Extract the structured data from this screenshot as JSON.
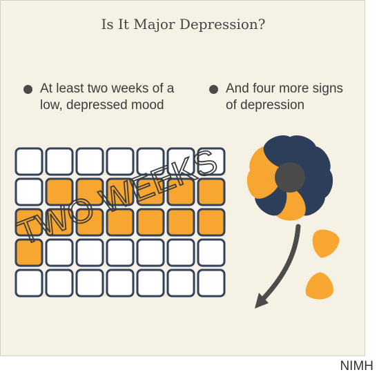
{
  "title": "Is It Major Depression?",
  "bullets": [
    {
      "line1": "At least two weeks of a",
      "line2": "low, depressed mood"
    },
    {
      "line1": "And four more signs",
      "line2": "of depression"
    }
  ],
  "calendar": {
    "label": "TWO WEEKS",
    "rows": 5,
    "cols": 7,
    "highlighted_days": 14,
    "highlight_color": "#f7a731",
    "cell_border_color": "#33415a"
  },
  "flower": {
    "petal_colors": [
      "#2d3e5a",
      "#f7a731"
    ],
    "center_color": "#4b4b4b",
    "stem_color": "#4b4b4b"
  },
  "credit": "NIMH"
}
